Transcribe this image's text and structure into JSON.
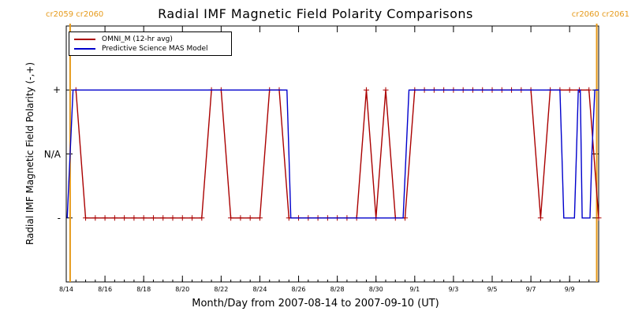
{
  "chart_data": {
    "type": "line",
    "title": "Radial IMF Magnetic Field Polarity Comparisons",
    "xlabel": "Month/Day from 2007-08-14 to 2007-09-10 (UT)",
    "ylabel": "Radial IMF Magnetic Field Polarity (-,+)",
    "x_range_days": [
      0,
      27.5
    ],
    "y_categories": [
      "-",
      "N/A",
      "+"
    ],
    "y_values": [
      -1,
      0,
      1
    ],
    "ylim": [
      -2,
      2
    ],
    "x_ticks": [
      {
        "label": "8/14",
        "day": 0
      },
      {
        "label": "8/16",
        "day": 2
      },
      {
        "label": "8/18",
        "day": 4
      },
      {
        "label": "8/20",
        "day": 6
      },
      {
        "label": "8/22",
        "day": 8
      },
      {
        "label": "8/24",
        "day": 10
      },
      {
        "label": "8/26",
        "day": 12
      },
      {
        "label": "8/28",
        "day": 14
      },
      {
        "label": "8/30",
        "day": 16
      },
      {
        "label": "9/1",
        "day": 18
      },
      {
        "label": "9/3",
        "day": 20
      },
      {
        "label": "9/5",
        "day": 22
      },
      {
        "label": "9/7",
        "day": 24
      },
      {
        "label": "9/9",
        "day": 26
      }
    ],
    "carrington_markers": [
      {
        "label": "cr2059 cr2060",
        "day": 0.2
      },
      {
        "label": "cr2060 cr2061",
        "day": 27.4
      }
    ],
    "legend_position": "top-left",
    "series": [
      {
        "name": "OMNI_M (12-hr avg)",
        "color": "#aa0000",
        "marker": "+",
        "points": [
          [
            0.5,
            1
          ],
          [
            1.0,
            -1
          ],
          [
            1.5,
            -1
          ],
          [
            2.0,
            -1
          ],
          [
            2.5,
            -1
          ],
          [
            3.0,
            -1
          ],
          [
            3.5,
            -1
          ],
          [
            4.0,
            -1
          ],
          [
            4.5,
            -1
          ],
          [
            5.0,
            -1
          ],
          [
            5.5,
            -1
          ],
          [
            6.0,
            -1
          ],
          [
            6.5,
            -1
          ],
          [
            7.0,
            -1
          ],
          [
            7.5,
            1
          ],
          [
            8.0,
            1
          ],
          [
            8.5,
            -1
          ],
          [
            9.0,
            -1
          ],
          [
            9.5,
            -1
          ],
          [
            10.0,
            -1
          ],
          [
            10.5,
            1
          ],
          [
            11.0,
            1
          ],
          [
            11.5,
            -1
          ],
          [
            12.0,
            -1
          ],
          [
            12.5,
            -1
          ],
          [
            13.0,
            -1
          ],
          [
            13.5,
            -1
          ],
          [
            14.0,
            -1
          ],
          [
            14.5,
            -1
          ],
          [
            15.0,
            -1
          ],
          [
            15.5,
            1
          ],
          [
            16.0,
            -1
          ],
          [
            16.5,
            1
          ],
          [
            17.0,
            -1
          ],
          [
            17.5,
            -1
          ],
          [
            18.0,
            1
          ],
          [
            18.5,
            1
          ],
          [
            19.0,
            1
          ],
          [
            19.5,
            1
          ],
          [
            20.0,
            1
          ],
          [
            20.5,
            1
          ],
          [
            21.0,
            1
          ],
          [
            21.5,
            1
          ],
          [
            22.0,
            1
          ],
          [
            22.5,
            1
          ],
          [
            23.0,
            1
          ],
          [
            23.5,
            1
          ],
          [
            24.0,
            1
          ],
          [
            24.5,
            -1
          ],
          [
            25.0,
            1
          ],
          [
            25.5,
            1
          ],
          [
            26.0,
            1
          ],
          [
            26.5,
            1
          ],
          [
            27.0,
            1
          ],
          [
            27.5,
            -1
          ]
        ]
      },
      {
        "name": "Predictive Science MAS Model",
        "color": "#0000cc",
        "points": [
          [
            0.05,
            -1
          ],
          [
            0.2,
            0
          ],
          [
            0.35,
            1
          ],
          [
            11.4,
            1
          ],
          [
            11.5,
            0
          ],
          [
            11.6,
            -1
          ],
          [
            17.4,
            -1
          ],
          [
            17.55,
            0
          ],
          [
            17.7,
            1
          ],
          [
            25.5,
            1
          ],
          [
            25.6,
            0
          ],
          [
            25.7,
            -1
          ],
          [
            26.25,
            -1
          ],
          [
            26.35,
            0
          ],
          [
            26.45,
            1
          ],
          [
            26.55,
            1
          ],
          [
            26.65,
            -1
          ],
          [
            27.05,
            -1
          ],
          [
            27.15,
            0
          ],
          [
            27.3,
            1
          ],
          [
            27.5,
            1
          ]
        ]
      }
    ]
  }
}
